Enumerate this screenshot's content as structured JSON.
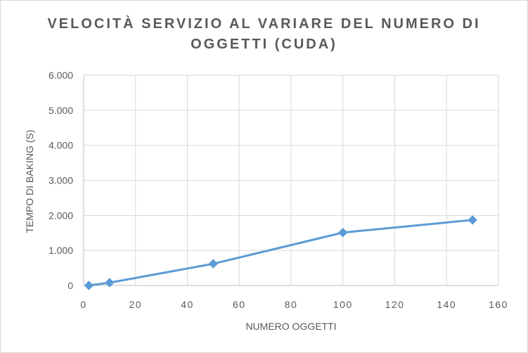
{
  "chart_data": {
    "type": "line",
    "title_line1": "VELOCITÀ SERVIZIO AL VARIARE DEL NUMERO DI",
    "title_line2": "OGGETTI (CUDA)",
    "xlabel": "NUMERO OGGETTI",
    "ylabel": "TEMPO DI BAKING (S)",
    "xlim": [
      0,
      160
    ],
    "ylim": [
      0,
      6
    ],
    "xticks": [
      0,
      20,
      40,
      60,
      80,
      100,
      120,
      140,
      160
    ],
    "yticks": [
      0,
      1,
      2,
      3,
      4,
      5,
      6
    ],
    "ytick_labels": [
      "0",
      "1.000",
      "2.000",
      "3.000",
      "4.000",
      "5.000",
      "6.000"
    ],
    "grid": true,
    "legend": "none",
    "marker": "diamond",
    "color": "#5b9bd5",
    "series": [
      {
        "x": [
          2,
          10,
          50,
          100,
          150
        ],
        "y": [
          0.0,
          0.08,
          0.62,
          1.51,
          1.87
        ]
      }
    ]
  }
}
